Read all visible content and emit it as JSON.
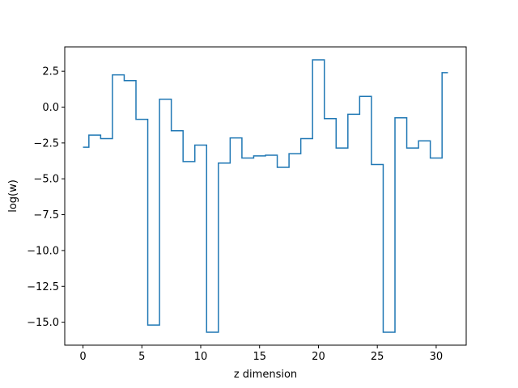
{
  "chart_data": {
    "type": "line",
    "drawstyle": "steps-mid",
    "title": "",
    "xlabel": "z dimension",
    "ylabel": "log(w)",
    "xlim": [
      -1.55,
      32.55
    ],
    "ylim": [
      -16.6,
      4.2
    ],
    "grid": false,
    "color": "#1f77b4",
    "xticks": [
      0,
      5,
      10,
      15,
      20,
      25,
      30
    ],
    "xtick_labels": [
      "0",
      "5",
      "10",
      "15",
      "20",
      "25",
      "30"
    ],
    "yticks": [
      2.5,
      0.0,
      -2.5,
      -5.0,
      -7.5,
      -10.0,
      -12.5,
      -15.0
    ],
    "ytick_labels": [
      "2.5",
      "0.0",
      "−2.5",
      "−5.0",
      "−7.5",
      "−10.0",
      "−12.5",
      "−15.0"
    ],
    "x": [
      0,
      1,
      2,
      3,
      4,
      5,
      6,
      7,
      8,
      9,
      10,
      11,
      12,
      13,
      14,
      15,
      16,
      17,
      18,
      19,
      20,
      21,
      22,
      23,
      24,
      25,
      26,
      27,
      28,
      29,
      30,
      31
    ],
    "series": [
      {
        "values": [
          -2.8,
          -1.95,
          -2.2,
          2.25,
          1.85,
          -0.85,
          -15.2,
          0.55,
          -1.65,
          -3.8,
          -2.65,
          -15.7,
          -3.9,
          -2.15,
          -3.55,
          -3.4,
          -3.35,
          -4.2,
          -3.25,
          -2.2,
          3.3,
          -0.8,
          -2.85,
          -0.5,
          0.75,
          -4.0,
          -15.7,
          -0.75,
          -2.85,
          -2.35,
          -3.55,
          2.4
        ]
      }
    ]
  }
}
